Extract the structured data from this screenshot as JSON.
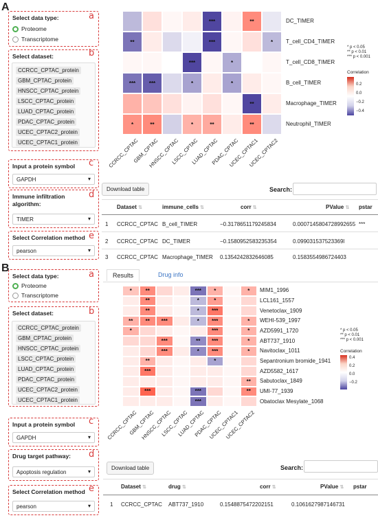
{
  "panels": {
    "a": "A",
    "b": "B"
  },
  "labels": {
    "a": "a",
    "b": "b",
    "c": "c",
    "d": "d",
    "e": "e"
  },
  "A": {
    "data_type_title": "Select data type:",
    "data_types": [
      "Proteome",
      "Transcriptome"
    ],
    "dataset_title": "Select dataset:",
    "datasets": [
      "CCRCC_CPTAC_protein",
      "GBM_CPTAC_protein",
      "HNSCC_CPTAC_protein",
      "LSCC_CPTAC_protein",
      "LUAD_CPTAC_protein",
      "PDAC_CPTAC_protein",
      "UCEC_CPTAC2_protein",
      "UCEC_CPTAC1_protein"
    ],
    "protein_title": "Input a protein symbol",
    "protein_value": "GAPDH",
    "algo_title": "Immune infiltration algorithm:",
    "algo_value": "TIMER",
    "corr_title": "Select Correlation method",
    "corr_value": "pearson",
    "heatmap": {
      "rows": [
        "DC_TIMER",
        "T_cell_CD4_TIMER",
        "T_cell_CD8_TIMER",
        "B_cell_TIMER",
        "Macrophage_TIMER",
        "Neutrophil_TIMER"
      ],
      "cols": [
        "CCRCC_CPTAC",
        "GBM_CPTAC",
        "HNSCC_CPTAC",
        "LSCC_CPTAC",
        "LUAD_CPTAC",
        "PDAC_CPTAC",
        "UCEC_CPTAC1",
        "UCEC_CPTAC2"
      ],
      "values": [
        [
          -0.15,
          0.08,
          0.02,
          0.05,
          -0.4,
          0.03,
          0.3,
          -0.05
        ],
        [
          -0.3,
          0.05,
          -0.08,
          -0.03,
          -0.4,
          0.02,
          0.08,
          -0.15
        ],
        [
          0.02,
          0.02,
          0.0,
          -0.4,
          0.02,
          -0.18,
          0.0,
          0.02
        ],
        [
          -0.3,
          -0.35,
          -0.08,
          -0.2,
          0.05,
          -0.2,
          0.05,
          0.02
        ],
        [
          0.2,
          0.15,
          0.08,
          0.03,
          0.08,
          0.02,
          -0.4,
          0.05
        ],
        [
          0.28,
          0.3,
          -0.1,
          0.2,
          0.22,
          0.05,
          0.3,
          -0.08
        ]
      ],
      "stars": [
        [
          "",
          "",
          "",
          "",
          "***",
          "",
          "**",
          ""
        ],
        [
          "**",
          "",
          "",
          "",
          "***",
          "",
          "",
          "*"
        ],
        [
          "",
          "",
          "",
          "***",
          "",
          "*",
          "",
          ""
        ],
        [
          "***",
          "***",
          "",
          "*",
          "",
          "*",
          "",
          ""
        ],
        [
          "",
          "",
          "",
          "",
          "",
          "",
          "**",
          ""
        ],
        [
          "*",
          "**",
          "",
          "*",
          "**",
          "",
          "**",
          ""
        ]
      ]
    },
    "legend": {
      "sig": [
        "*  p < 0.05",
        "**  p < 0.01",
        "***  p < 0.001"
      ],
      "title": "Correlation",
      "ticks": [
        "0.2",
        "0.0",
        "−0.2",
        "−0.4"
      ]
    },
    "download": "Download table",
    "search": "Search:",
    "columns": [
      "",
      "Dataset",
      "immune_cells",
      "corr",
      "PValue",
      "pstar"
    ],
    "rows": [
      [
        "1",
        "CCRCC_CPTAC",
        "B_cell_TIMER",
        "−0.3178651179245834",
        "0.0007145804728992655",
        "***"
      ],
      [
        "2",
        "CCRCC_CPTAC",
        "DC_TIMER",
        "−0.1580952583235354",
        "0.099031537523369l",
        ""
      ],
      [
        "3",
        "CCRCC_CPTAC",
        "Macrophage_TIMER",
        "0.1354242832646085",
        "0.1583554986724403",
        ""
      ]
    ]
  },
  "B": {
    "data_type_title": "Select data type:",
    "data_types": [
      "Proteome",
      "Transcriptome"
    ],
    "dataset_title": "Select dataset:",
    "datasets": [
      "CCRCC_CPTAC_protein",
      "GBM_CPTAC_protein",
      "HNSCC_CPTAC_protein",
      "LSCC_CPTAC_protein",
      "LUAD_CPTAC_protein",
      "PDAC_CPTAC_protein",
      "UCEC_CPTAC2_protein",
      "UCEC_CPTAC1_protein"
    ],
    "protein_title": "Input a protein symbol",
    "protein_value": "GAPDH",
    "pathway_title": "Drug target pathway:",
    "pathway_value": "Apoptosis regulation",
    "corr_title": "Select Correlation method",
    "corr_value": "pearson",
    "tabs": [
      "Results",
      "Drug info"
    ],
    "heatmap": {
      "rows": [
        "MIM1_1996",
        "LCL161_1557",
        "Venetoclax_1909",
        "WEHI-539_1997",
        "AZD5991_1720",
        "ABT737_1910",
        "Navitoclax_1011",
        "Sepantronium bromide_1941",
        "AZD5582_1617",
        "Sabutoclax_1849",
        "UMI-77_1939",
        "Obatoclax Mesylate_1068"
      ],
      "cols": [
        "CCRCC_CPTAC",
        "GBM_CPTAC",
        "HNSCC_CPTAC",
        "LSCC_CPTAC",
        "LUAD_CPTAC",
        "PDAC_CPTAC",
        "UCEC_CPTAC1",
        "UCEC_CPTAC2"
      ],
      "values": [
        [
          0.15,
          0.3,
          0.1,
          0.05,
          -0.3,
          0.2,
          0.02,
          0.2
        ],
        [
          0.05,
          0.3,
          0.05,
          0.02,
          -0.15,
          0.25,
          0.02,
          0.1
        ],
        [
          0.05,
          0.3,
          0.05,
          0.02,
          -0.15,
          0.35,
          0.02,
          0.1
        ],
        [
          0.2,
          0.3,
          0.3,
          0.05,
          -0.15,
          0.3,
          0.02,
          0.2
        ],
        [
          0.2,
          0.1,
          0.05,
          0.02,
          0.05,
          0.3,
          0.02,
          0.2
        ],
        [
          0.1,
          0.1,
          0.3,
          0.02,
          -0.25,
          0.3,
          0.02,
          0.2
        ],
        [
          0.05,
          0.1,
          0.3,
          0.05,
          -0.25,
          0.3,
          0.02,
          0.2
        ],
        [
          0.05,
          0.2,
          0.05,
          0.02,
          0.05,
          -0.2,
          0.02,
          0.1
        ],
        [
          0.05,
          0.35,
          0.05,
          0.02,
          0.05,
          0.05,
          0.02,
          0.1
        ],
        [
          0.05,
          0.05,
          0.05,
          0.02,
          0.05,
          0.05,
          0.02,
          0.2
        ],
        [
          0.05,
          0.4,
          0.05,
          0.02,
          -0.3,
          0.1,
          0.02,
          0.3
        ],
        [
          0.05,
          0.05,
          0.05,
          0.02,
          -0.3,
          0.05,
          0.02,
          0.1
        ]
      ],
      "stars": [
        [
          "*",
          "**",
          "",
          "",
          "***",
          "*",
          "",
          "*"
        ],
        [
          "",
          "**",
          "",
          "",
          "*",
          "*",
          "",
          ""
        ],
        [
          "",
          "**",
          "",
          "",
          "*",
          "***",
          "",
          ""
        ],
        [
          "**",
          "**",
          "***",
          "",
          "*",
          "***",
          "",
          "*"
        ],
        [
          "*",
          "",
          "",
          "",
          "",
          "***",
          "",
          "*"
        ],
        [
          "",
          "",
          "***",
          "",
          "**",
          "***",
          "",
          "*"
        ],
        [
          "",
          "",
          "***",
          "",
          "*",
          "***",
          "",
          "*"
        ],
        [
          "",
          "**",
          "",
          "",
          "",
          "*",
          "",
          ""
        ],
        [
          "",
          "***",
          "",
          "",
          "",
          "",
          "",
          ""
        ],
        [
          "",
          "",
          "",
          "",
          "",
          "",
          "",
          "**"
        ],
        [
          "",
          "***",
          "",
          "",
          "***",
          "",
          "",
          "**"
        ],
        [
          "",
          "",
          "",
          "",
          "***",
          "",
          "",
          ""
        ]
      ]
    },
    "legend": {
      "sig": [
        "*  p < 0.05",
        "**  p < 0.01",
        "***  p < 0.001"
      ],
      "title": "Correlation",
      "ticks": [
        "0.4",
        "0.2",
        "0.0",
        "−0.2"
      ]
    },
    "download": "Download table",
    "search": "Search:",
    "columns": [
      "",
      "Dataset",
      "drug",
      "corr",
      "PValue",
      "pstar"
    ],
    "rows": [
      [
        "1",
        "CCRCC_CPTAC",
        "ABT737_1910",
        "0.1548875472202151",
        "0.1061627987146731",
        ""
      ]
    ]
  }
}
